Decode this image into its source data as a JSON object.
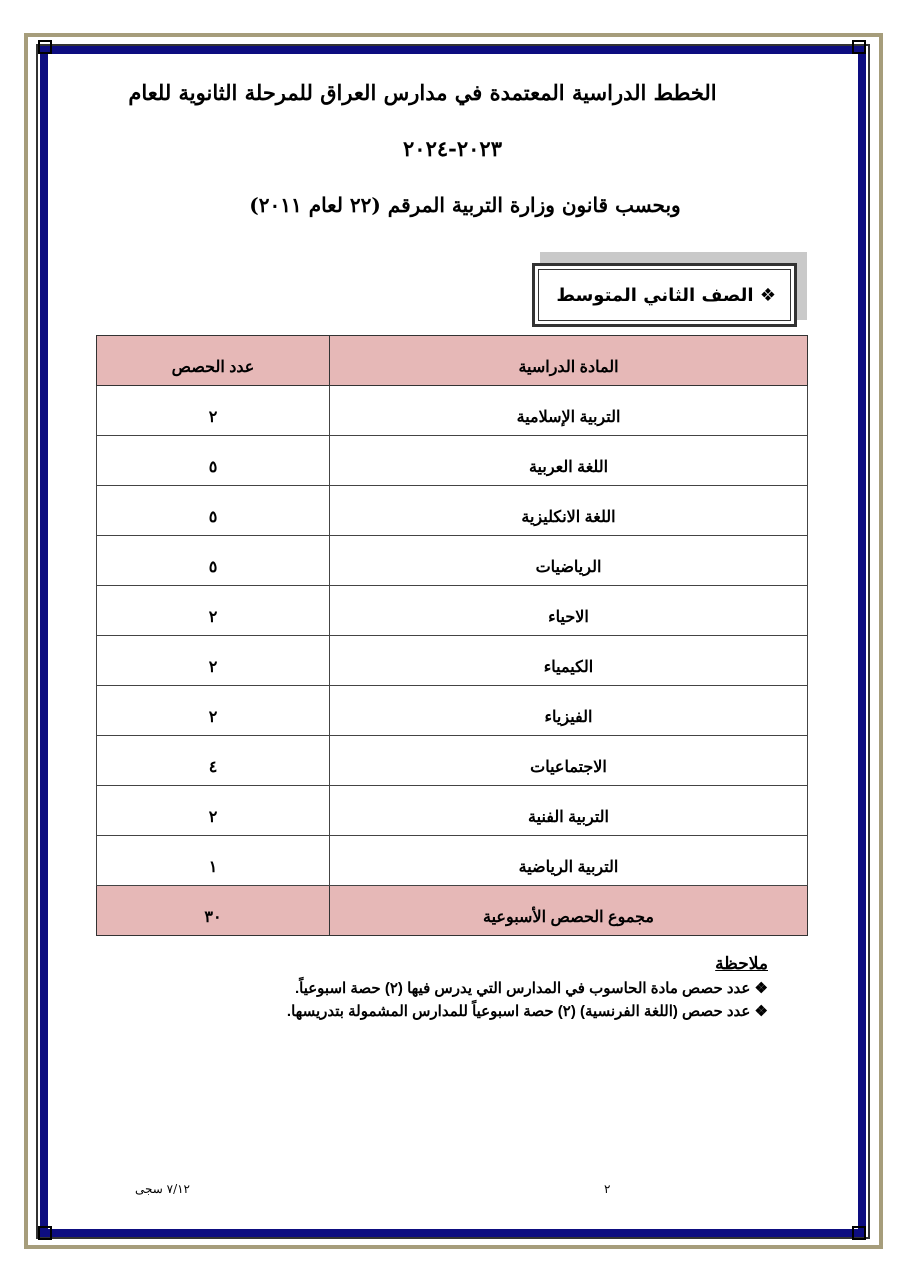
{
  "title": {
    "line1": "الخطط الدراسية المعتمدة في مدارس العراق للمرحلة الثانوية للعام",
    "line2": "٢٠٢٣-٢٠٢٤",
    "line3": "وبحسب قانون وزارة التربية المرقم (٢٢ لعام ٢٠١١)"
  },
  "grade": {
    "bullet": "❖",
    "label": "الصف الثاني المتوسط"
  },
  "table": {
    "headers": {
      "subject": "المادة الدراسية",
      "count": "عدد الحصص"
    },
    "rows": [
      {
        "subject": "التربية الإسلامية",
        "count": "٢"
      },
      {
        "subject": "اللغة العربية",
        "count": "٥"
      },
      {
        "subject": "اللغة الانكليزية",
        "count": "٥"
      },
      {
        "subject": "الرياضيات",
        "count": "٥"
      },
      {
        "subject": "الاحياء",
        "count": "٢"
      },
      {
        "subject": "الكيمياء",
        "count": "٢"
      },
      {
        "subject": "الفيزياء",
        "count": "٢"
      },
      {
        "subject": "الاجتماعيات",
        "count": "٤"
      },
      {
        "subject": "التربية الفنية",
        "count": "٢"
      },
      {
        "subject": "التربية الرياضية",
        "count": "١"
      }
    ],
    "total": {
      "label": "مجموع الحصص الأسبوعية",
      "count": "٣٠"
    }
  },
  "notes": {
    "heading": "ملاحظة",
    "items": [
      "❖ عدد حصص مادة الحاسوب في المدارس التي يدرس فيها (٢) حصة اسبوعياً.",
      "❖ عدد حصص (اللغة الفرنسية) (٢) حصة اسبوعياً للمدارس المشمولة بتدريسها."
    ]
  },
  "footer": {
    "page": "٢",
    "ref": "٧/١٢ سجى"
  },
  "colors": {
    "border_blue": "#0d0d80",
    "border_tan": "#a69d7b",
    "header_fill": "#e6b8b7"
  }
}
